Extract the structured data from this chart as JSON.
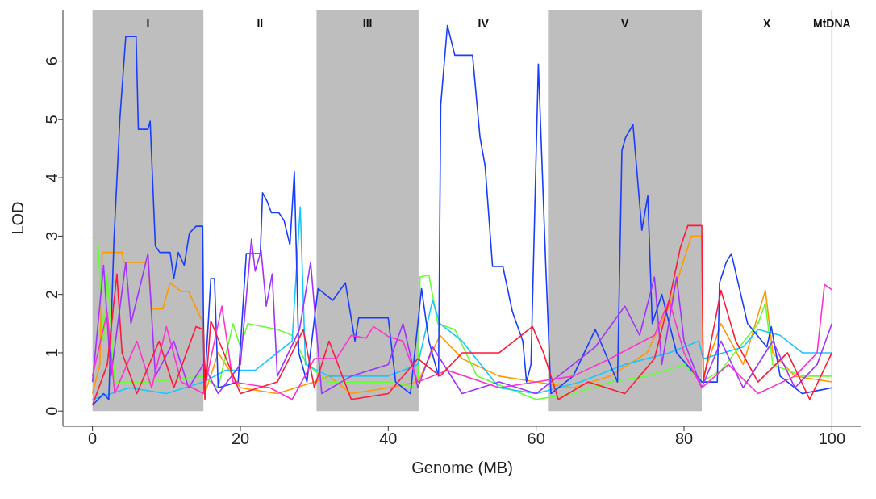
{
  "chart_data": {
    "type": "line",
    "xlabel": "Genome (MB)",
    "ylabel": "LOD",
    "xlim": [
      -4,
      104
    ],
    "ylim": [
      -0.26,
      6.88
    ],
    "xticks": [
      0,
      20,
      40,
      60,
      80,
      100
    ],
    "yticks": [
      0,
      1,
      2,
      3,
      4,
      5,
      6
    ],
    "bands": [
      {
        "axis": "x",
        "from": 0,
        "to": 15.0,
        "label": "I",
        "color": "#bebebe"
      },
      {
        "axis": "x",
        "from": 30.3,
        "to": 44.1,
        "label": "III",
        "color": "#bebebe"
      },
      {
        "axis": "x",
        "from": 61.6,
        "to": 82.4,
        "label": "V",
        "color": "#bebebe"
      }
    ],
    "annotations": [
      "II",
      "IV",
      "X"
    ],
    "ref_lines": [
      {
        "axis": "x",
        "value": 100,
        "label": "MtDNA",
        "color": "#bebebe"
      }
    ],
    "series": [
      {
        "color": "#ff9900",
        "x": [
          0,
          1,
          1.3,
          4,
          4.2,
          7.5,
          8,
          9.5,
          10.5,
          12,
          13,
          15,
          15.2,
          17,
          20,
          25,
          30,
          32,
          35,
          40,
          44,
          47,
          50,
          55,
          60,
          65,
          70,
          75,
          78,
          80,
          81,
          82.4,
          82.6,
          85,
          88,
          91,
          92,
          95,
          100
        ],
        "values": [
          0.3,
          0.8,
          2.72,
          2.72,
          2.55,
          2.55,
          1.75,
          1.75,
          2.2,
          2.05,
          2.05,
          1.5,
          0.3,
          1.0,
          0.4,
          0.3,
          0.5,
          0.6,
          0.3,
          0.4,
          0.5,
          1.3,
          0.9,
          0.6,
          0.5,
          0.4,
          0.6,
          1.0,
          1.8,
          2.6,
          3.0,
          3.0,
          0.6,
          1.5,
          0.8,
          2.07,
          1.0,
          0.6,
          0.5
        ]
      },
      {
        "color": "#66ff33",
        "x": [
          0,
          0.7,
          1.5,
          2,
          3,
          8,
          15,
          17,
          19,
          20,
          21,
          25,
          27,
          29,
          32,
          40,
          44,
          44.3,
          45.5,
          46.7,
          49,
          52,
          60,
          65,
          70,
          75,
          80,
          82.4,
          85,
          90,
          91,
          92,
          96,
          100
        ],
        "values": [
          2.97,
          2.97,
          1.2,
          2.35,
          0.5,
          0.5,
          0.6,
          0.4,
          1.5,
          1.1,
          1.5,
          1.4,
          1.3,
          0.8,
          0.5,
          0.5,
          0.4,
          2.3,
          2.33,
          1.5,
          1.4,
          0.6,
          0.2,
          0.3,
          0.5,
          0.6,
          0.8,
          0.5,
          0.7,
          1.5,
          1.85,
          0.8,
          0.6,
          0.6
        ]
      },
      {
        "color": "#1ac6ff",
        "x": [
          0,
          5,
          10,
          15,
          18,
          22,
          25,
          27,
          28.1,
          28.8,
          32,
          40,
          44,
          46,
          47,
          50,
          55,
          60,
          66,
          72,
          78,
          82,
          82.6,
          88,
          90,
          93,
          96,
          100
        ],
        "values": [
          0.2,
          0.4,
          0.3,
          0.5,
          0.7,
          0.7,
          1.0,
          1.2,
          3.5,
          0.8,
          0.6,
          0.6,
          0.8,
          1.9,
          1.5,
          1.2,
          0.4,
          0.3,
          0.5,
          0.8,
          1.0,
          1.2,
          0.9,
          1.1,
          1.4,
          1.3,
          1.0,
          1.0
        ]
      },
      {
        "color": "#1a3cff",
        "x": [
          0,
          1.5,
          2.2,
          2.9,
          3.7,
          4.5,
          5.9,
          6.2,
          7.5,
          7.8,
          8.5,
          9.1,
          10.5,
          11.0,
          11.6,
          12.4,
          13.1,
          14.0,
          14.9,
          15.1,
          16,
          16.5,
          17,
          19.7,
          20.8,
          22.7,
          23.0,
          23.6,
          24.2,
          25.2,
          25.9,
          26.7,
          27.3,
          27.9,
          29,
          30.5,
          32.5,
          34.2,
          35.5,
          36,
          40,
          41,
          43,
          44.5,
          45.5,
          46.8,
          47.1,
          48.0,
          49.0,
          51.4,
          52.4,
          53.1,
          54.1,
          55.5,
          56.8,
          58.2,
          58.7,
          59.3,
          60.3,
          61.3,
          62,
          65,
          68,
          71.0,
          71.6,
          72.1,
          73.1,
          74.3,
          75.1,
          75.7,
          77,
          79,
          82.4,
          84.5,
          84.8,
          85.7,
          86.4,
          88.6,
          91.2,
          91.8,
          93,
          96,
          100
        ],
        "values": [
          0.1,
          0.3,
          0.2,
          2.93,
          5.0,
          6.42,
          6.42,
          4.83,
          4.83,
          4.97,
          2.83,
          2.72,
          2.72,
          2.27,
          2.72,
          2.5,
          3.05,
          3.17,
          3.17,
          0.3,
          2.27,
          2.27,
          0.4,
          0.5,
          2.7,
          2.7,
          3.74,
          3.6,
          3.4,
          3.4,
          3.27,
          2.85,
          4.1,
          1.0,
          0.5,
          2.1,
          1.9,
          2.2,
          1.2,
          1.6,
          1.6,
          0.5,
          0.3,
          2.1,
          1.2,
          0.6,
          5.25,
          6.61,
          6.1,
          6.1,
          4.7,
          4.2,
          2.48,
          2.48,
          1.7,
          1.2,
          0.5,
          0.8,
          5.95,
          2.5,
          0.3,
          0.6,
          1.4,
          0.5,
          4.47,
          4.69,
          4.91,
          3.1,
          3.69,
          1.5,
          2.0,
          1.0,
          0.5,
          0.5,
          2.2,
          2.55,
          2.7,
          1.5,
          1.1,
          1.45,
          0.6,
          0.3,
          0.4
        ]
      },
      {
        "color": "#a033ff",
        "x": [
          0,
          1.5,
          2.5,
          4.5,
          5.2,
          7.5,
          8.5,
          11,
          13,
          15,
          17,
          20,
          21.5,
          22,
          22.8,
          23.5,
          24.3,
          25,
          28,
          29.5,
          31,
          35,
          40,
          42,
          44,
          46,
          50,
          55,
          60,
          65,
          68,
          72,
          74,
          76,
          77,
          79,
          80,
          82.4,
          85,
          88,
          92,
          95,
          98,
          100
        ],
        "values": [
          0.5,
          2.5,
          0.6,
          2.55,
          1.5,
          2.7,
          0.6,
          1.2,
          0.4,
          0.8,
          0.3,
          0.8,
          2.95,
          2.4,
          2.75,
          1.8,
          2.35,
          0.6,
          1.4,
          2.55,
          0.3,
          0.6,
          0.8,
          1.5,
          0.4,
          1.1,
          0.3,
          0.5,
          0.3,
          0.8,
          1.1,
          1.8,
          1.3,
          2.3,
          0.8,
          2.3,
          1.2,
          0.4,
          1.2,
          0.4,
          1.2,
          0.4,
          0.8,
          1.5
        ]
      },
      {
        "color": "#ff33cc",
        "x": [
          0,
          2,
          3,
          6,
          8,
          10,
          12,
          15,
          17.5,
          19,
          24,
          27,
          30,
          33,
          35,
          37,
          38,
          40,
          42,
          44,
          48,
          55,
          60,
          65,
          70,
          76,
          78,
          80,
          82.4,
          86,
          90,
          95,
          98,
          99,
          100
        ],
        "values": [
          0.6,
          1.7,
          0.3,
          1.2,
          0.4,
          1.45,
          0.5,
          0.3,
          1.8,
          0.5,
          0.4,
          0.2,
          0.9,
          0.9,
          1.3,
          1.25,
          1.45,
          1.28,
          1.2,
          0.5,
          0.7,
          0.4,
          0.5,
          0.6,
          0.9,
          1.3,
          1.9,
          1.0,
          0.4,
          0.8,
          0.3,
          0.6,
          1.0,
          2.17,
          2.08
        ]
      },
      {
        "color": "#ff1a3a",
        "x": [
          0,
          2,
          3.3,
          4,
          6,
          9,
          11,
          14,
          15,
          15.2,
          16,
          20,
          25,
          27,
          28.5,
          30,
          32,
          35,
          40,
          44,
          47,
          50,
          55,
          58,
          59.5,
          61,
          63,
          67,
          72,
          76,
          78,
          79.5,
          80.5,
          82.4,
          82.6,
          85,
          87,
          90,
          94,
          97,
          100
        ],
        "values": [
          0.1,
          0.8,
          2.35,
          1.0,
          0.3,
          1.2,
          0.4,
          1.45,
          1.4,
          0.2,
          1.55,
          0.3,
          0.5,
          1.0,
          1.4,
          0.4,
          1.2,
          0.2,
          0.3,
          0.9,
          0.6,
          1.0,
          1.0,
          1.3,
          1.45,
          1.0,
          0.2,
          0.5,
          0.3,
          0.9,
          1.9,
          2.8,
          3.18,
          3.18,
          0.5,
          2.07,
          1.2,
          0.5,
          1.0,
          0.2,
          1.0
        ]
      }
    ]
  }
}
